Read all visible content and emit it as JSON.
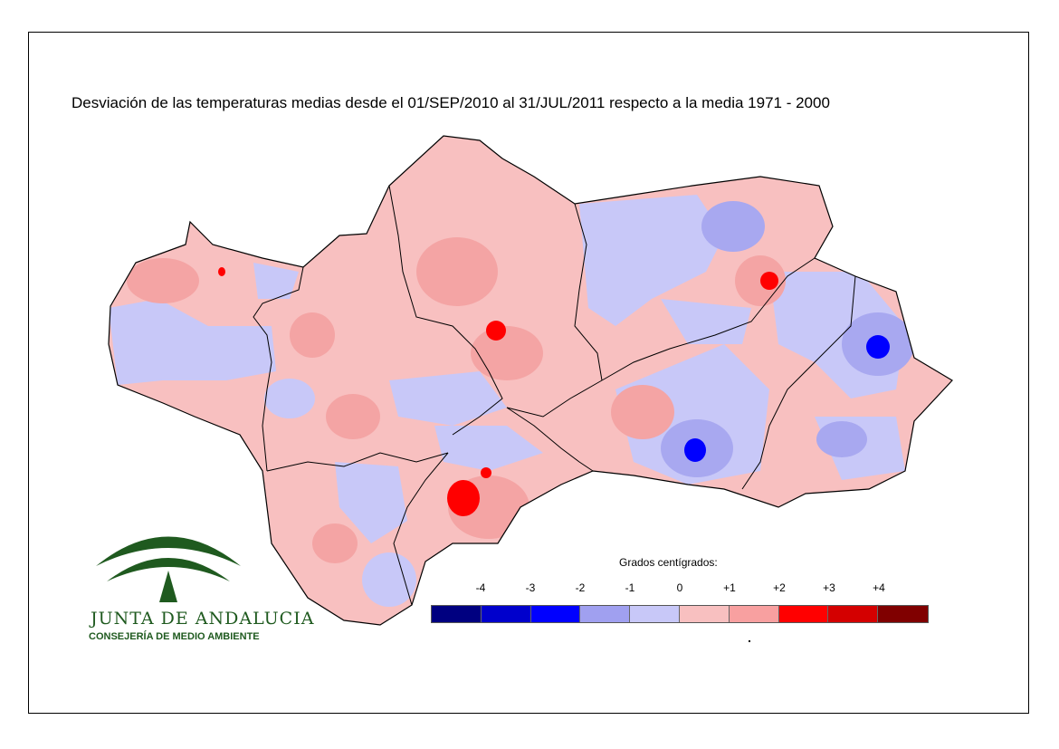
{
  "title": "Desviación de las temperaturas medias desde el 01/SEP/2010 al 31/JUL/2011 respecto a la media 1971 - 2000",
  "legend": {
    "title": "Grados centígrados:",
    "ticks": [
      "-4",
      "-3",
      "-2",
      "-1",
      "0",
      "+1",
      "+2",
      "+3",
      "+4"
    ],
    "colors": [
      "#000080",
      "#0000cc",
      "#0000ff",
      "#a0a0f0",
      "#c8c8f8",
      "#f8c0c0",
      "#f8a0a0",
      "#ff0000",
      "#d40000",
      "#800000"
    ]
  },
  "palette": {
    "warm_light": "#f8c0c0",
    "warm_mid": "#f4a4a4",
    "cool_light": "#c8c8f8",
    "cool_mid": "#a8a8f0",
    "hot": "#ff0000",
    "cold": "#0000ff",
    "border": "#000000"
  },
  "logo": {
    "name": "JUNTA DE ANDALUCIA",
    "subtitle": "CONSEJERÍA DE MEDIO AMBIENTE",
    "color": "#1f5a1f"
  }
}
